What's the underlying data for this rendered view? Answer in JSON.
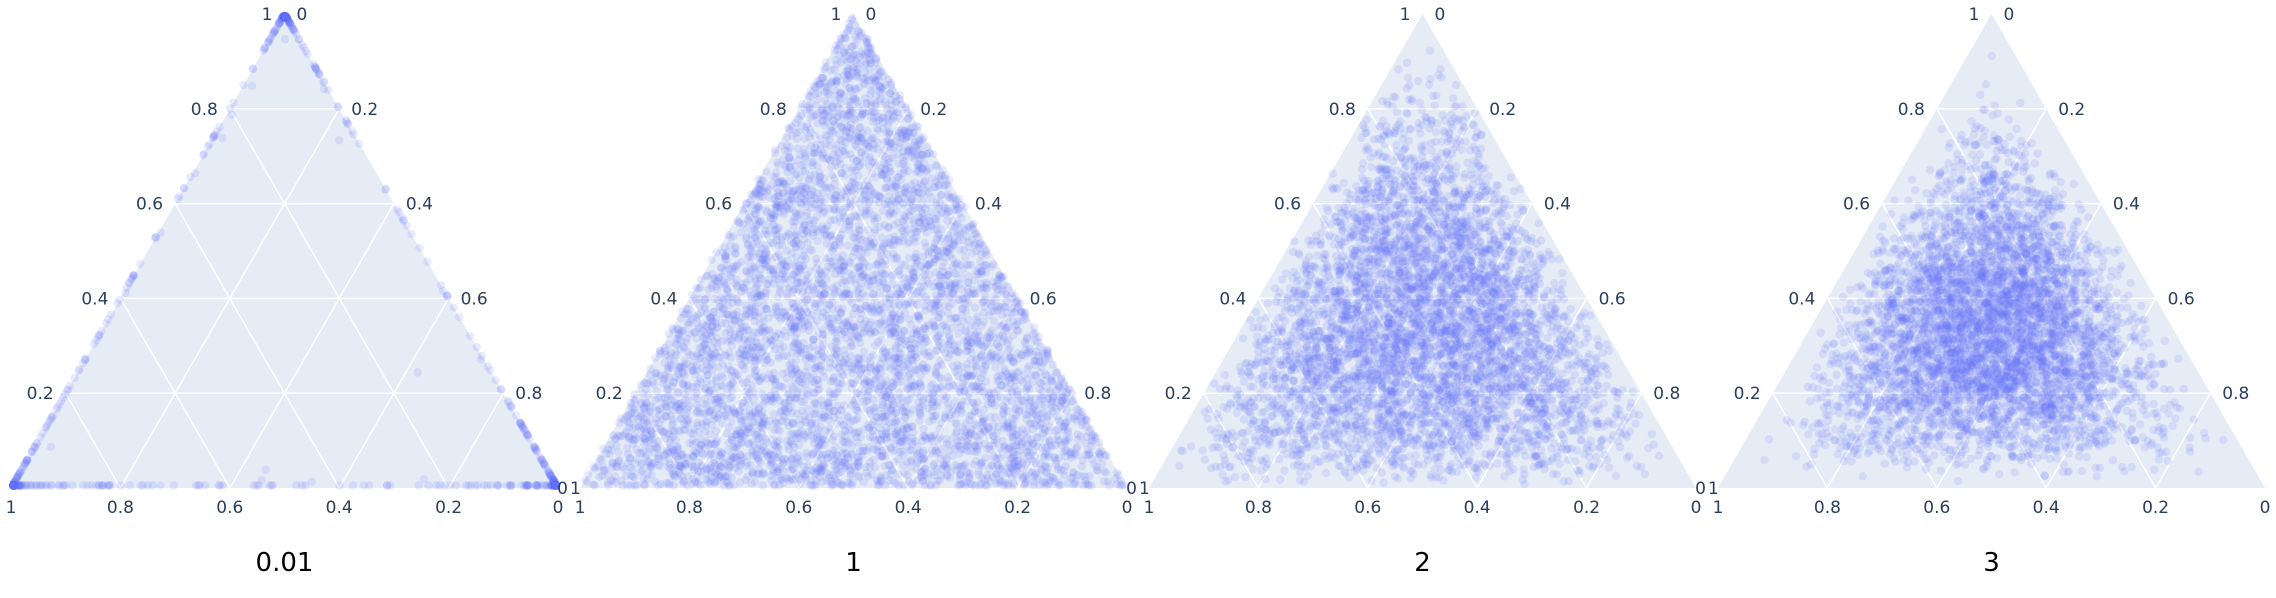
{
  "chart_data": [
    {
      "type": "scatter",
      "subtype": "ternary",
      "caption": "0.01",
      "title": "",
      "axes": {
        "a": {
          "title": ""
        },
        "b": {
          "title": ""
        },
        "c": {
          "title": ""
        }
      },
      "tick_labels": [
        "0",
        "0.2",
        "0.4",
        "0.6",
        "0.8",
        "1"
      ],
      "sample": {
        "alpha": 0.01,
        "n": 5000
      },
      "colors": {
        "marker": "#636efa",
        "background": "#e5ecf6",
        "grid": "#ffffff",
        "tick_text": "#2a3f5f"
      }
    },
    {
      "type": "scatter",
      "subtype": "ternary",
      "caption": "1",
      "title": "",
      "axes": {
        "a": {
          "title": ""
        },
        "b": {
          "title": ""
        },
        "c": {
          "title": ""
        }
      },
      "tick_labels": [
        "0",
        "0.2",
        "0.4",
        "0.6",
        "0.8",
        "1"
      ],
      "sample": {
        "alpha": 1,
        "n": 5000
      },
      "colors": {
        "marker": "#636efa",
        "background": "#e5ecf6",
        "grid": "#ffffff",
        "tick_text": "#2a3f5f"
      }
    },
    {
      "type": "scatter",
      "subtype": "ternary",
      "caption": "2",
      "title": "",
      "axes": {
        "a": {
          "title": ""
        },
        "b": {
          "title": ""
        },
        "c": {
          "title": ""
        }
      },
      "tick_labels": [
        "0",
        "0.2",
        "0.4",
        "0.6",
        "0.8",
        "1"
      ],
      "sample": {
        "alpha": 2,
        "n": 5000
      },
      "colors": {
        "marker": "#636efa",
        "background": "#e5ecf6",
        "grid": "#ffffff",
        "tick_text": "#2a3f5f"
      }
    },
    {
      "type": "scatter",
      "subtype": "ternary",
      "caption": "3",
      "title": "",
      "axes": {
        "a": {
          "title": ""
        },
        "b": {
          "title": ""
        },
        "c": {
          "title": ""
        }
      },
      "tick_labels": [
        "0",
        "0.2",
        "0.4",
        "0.6",
        "0.8",
        "1"
      ],
      "sample": {
        "alpha": 3,
        "n": 5000
      },
      "colors": {
        "marker": "#636efa",
        "background": "#e5ecf6",
        "grid": "#ffffff",
        "tick_text": "#2a3f5f"
      }
    }
  ]
}
